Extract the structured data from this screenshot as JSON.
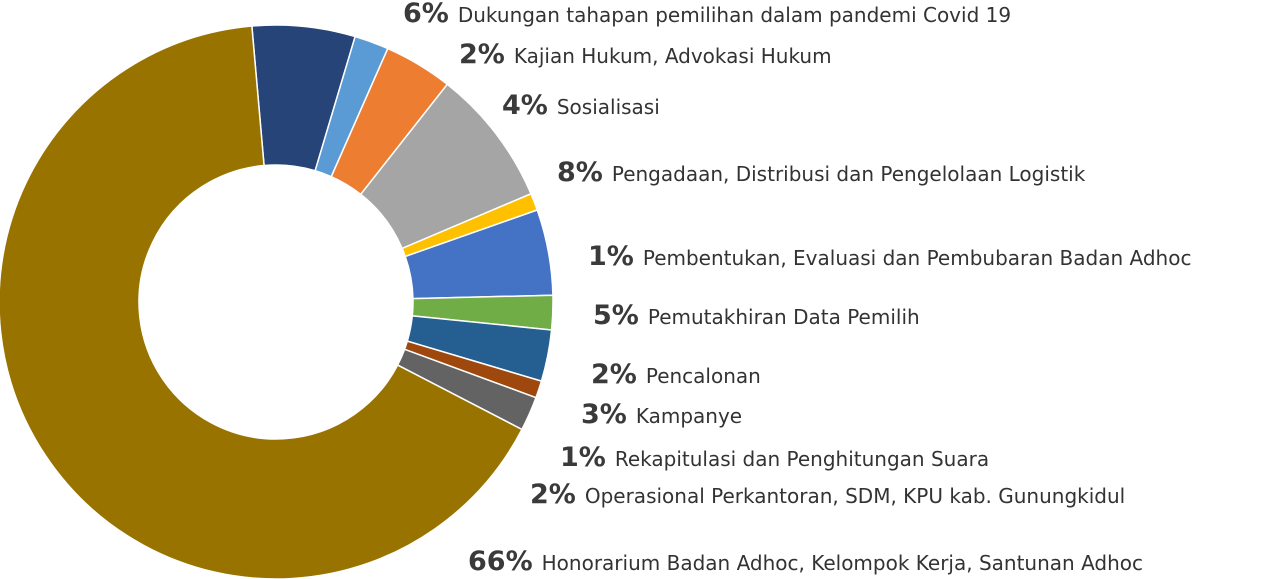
{
  "chart_data": {
    "type": "pie",
    "donut": true,
    "title": "",
    "slices": [
      {
        "percent_label": "6%",
        "value": 6,
        "label": "Dukungan tahapan pemilihan dalam pandemi Covid 19",
        "color": "#264478"
      },
      {
        "percent_label": "2%",
        "value": 2,
        "label": "Kajian Hukum, Advokasi Hukum",
        "color": "#5B9BD5"
      },
      {
        "percent_label": "4%",
        "value": 4,
        "label": "Sosialisasi",
        "color": "#ED7D31"
      },
      {
        "percent_label": "8%",
        "value": 8,
        "label": "Pengadaan, Distribusi dan Pengelolaan Logistik",
        "color": "#A5A5A5"
      },
      {
        "percent_label": "1%",
        "value": 1,
        "label": "Pembentukan, Evaluasi dan Pembubaran Badan Adhoc",
        "color": "#FFC000"
      },
      {
        "percent_label": "5%",
        "value": 5,
        "label": "Pemutakhiran Data Pemilih",
        "color": "#4472C4"
      },
      {
        "percent_label": "2%",
        "value": 2,
        "label": "Pencalonan",
        "color": "#70AD47"
      },
      {
        "percent_label": "3%",
        "value": 3,
        "label": "Kampanye",
        "color": "#255E91"
      },
      {
        "percent_label": "1%",
        "value": 1,
        "label": "Rekapitulasi dan Penghitungan Suara",
        "color": "#9E480E"
      },
      {
        "percent_label": "2%",
        "value": 2,
        "label": "Operasional Perkantoran, SDM, KPU kab. Gunungkidul",
        "color": "#636363"
      },
      {
        "percent_label": "66%",
        "value": 66,
        "label": "Honorarium Badan Adhoc, Kelompok Kerja, Santunan Adhoc",
        "color": "#997300"
      }
    ]
  }
}
